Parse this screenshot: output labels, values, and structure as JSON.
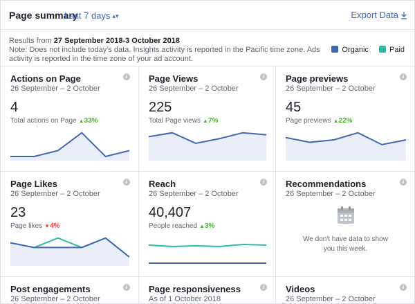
{
  "header": {
    "title": "Page summary",
    "range_label": "Last 7 days",
    "export_label": "Export Data"
  },
  "info": {
    "line1_prefix": "Results from ",
    "line1_range": "27 September 2018-3 October 2018",
    "line2": "Note: Does not include today's data. Insights activity is reported in the Pacific time zone. Ads activity is reported in the time zone of your ad account."
  },
  "legend": {
    "organic_label": "Organic",
    "paid_label": "Paid",
    "organic_color": "#4267b2",
    "paid_color": "#2abba7"
  },
  "cards": [
    {
      "title": "Actions on Page",
      "date": "26 September – 2 October",
      "value": "4",
      "sub_label": "Total actions on Page",
      "change": "33%",
      "direction": "up",
      "organic": [
        0,
        0,
        1,
        4,
        0,
        1
      ],
      "paid": null,
      "fill": true
    },
    {
      "title": "Page Views",
      "date": "26 September – 2 October",
      "value": "225",
      "sub_label": "Total Page views",
      "change": "7%",
      "direction": "up",
      "organic": [
        30,
        36,
        20,
        27,
        36,
        33
      ],
      "paid": null,
      "fill": true
    },
    {
      "title": "Page previews",
      "date": "26 September – 2 October",
      "value": "45",
      "sub_label": "Page previews",
      "change": "22%",
      "direction": "up",
      "organic": [
        8,
        6,
        7,
        10,
        5,
        7
      ],
      "paid": null,
      "fill": true
    },
    {
      "title": "Page Likes",
      "date": "26 September – 2 October",
      "value": "23",
      "sub_label": "Page likes",
      "change": "4%",
      "direction": "down",
      "organic": [
        4,
        3,
        3,
        3,
        5,
        1
      ],
      "paid": [
        4,
        3,
        5,
        3,
        5,
        1
      ],
      "fill": true
    },
    {
      "title": "Reach",
      "date": "26 September – 2 October",
      "value": "40,407",
      "sub_label": "People reached",
      "change": "3%",
      "direction": "up",
      "organic": [
        50,
        50,
        50,
        50,
        50,
        50
      ],
      "paid": [
        5700,
        5600,
        5650,
        5600,
        5750,
        5700
      ],
      "fill": false
    },
    {
      "title": "Recommendations",
      "date": "26 September – 2 October",
      "value": "",
      "sub_label": "",
      "change": "",
      "direction": "",
      "organic": null,
      "paid": null,
      "fill": false,
      "empty_message": "We don't have data to show you this week."
    },
    {
      "title": "Post engagements",
      "date": "26 September – 2 October"
    },
    {
      "title": "Page responsiveness",
      "date": "As of 1 October 2018"
    },
    {
      "title": "Videos",
      "date": "26 September – 2 October"
    }
  ]
}
